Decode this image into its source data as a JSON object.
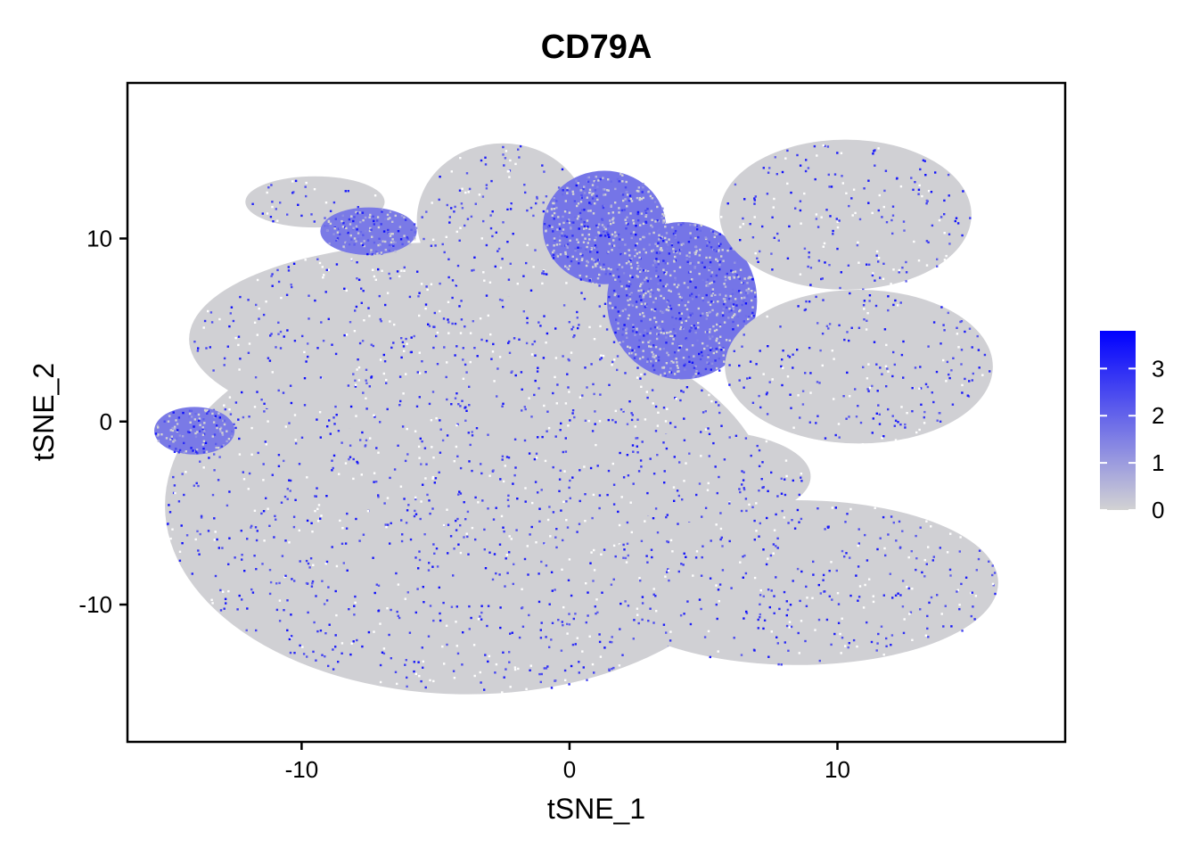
{
  "chart_data": {
    "type": "scatter",
    "title": "CD79A",
    "xlabel": "tSNE_1",
    "ylabel": "tSNE_2",
    "xlim": [
      -16.5,
      18.5
    ],
    "ylim": [
      -17.5,
      18.5
    ],
    "x_ticks": [
      -10,
      0,
      10
    ],
    "y_ticks": [
      -10,
      0,
      10
    ],
    "x_tick_labels": [
      "-10",
      "0",
      "10"
    ],
    "y_tick_labels": [
      "-10",
      "0",
      "10"
    ],
    "grid": false,
    "color_scale": {
      "low_color": "#d3d3d3",
      "high_color": "#0000ff",
      "range": [
        0,
        3.8
      ],
      "ticks": [
        0,
        1,
        2,
        3
      ],
      "tick_labels": [
        "0",
        "1",
        "2",
        "3"
      ],
      "legend_position": "right"
    },
    "clusters": [
      {
        "cx": -3.8,
        "cy": -4.6,
        "rx": 11.3,
        "ry": 10.3,
        "expr": 0.05
      },
      {
        "cx": -4.5,
        "cy": 4.5,
        "rx": 9.7,
        "ry": 5.3,
        "expr": 0.05
      },
      {
        "cx": -2.5,
        "cy": 11.0,
        "rx": 3.2,
        "ry": 4.2,
        "expr": 0.05
      },
      {
        "cx": -9.5,
        "cy": 12.0,
        "rx": 2.6,
        "ry": 1.4,
        "expr": 0.05
      },
      {
        "cx": -7.5,
        "cy": 10.4,
        "rx": 1.8,
        "ry": 1.3,
        "expr": 1.6
      },
      {
        "cx": -14.0,
        "cy": -0.5,
        "rx": 1.5,
        "ry": 1.3,
        "expr": 1.6
      },
      {
        "cx": 1.3,
        "cy": 10.6,
        "rx": 2.3,
        "ry": 3.1,
        "expr": 1.7
      },
      {
        "cx": 4.2,
        "cy": 6.6,
        "rx": 2.8,
        "ry": 4.3,
        "expr": 1.7
      },
      {
        "cx": 10.3,
        "cy": 11.3,
        "rx": 4.7,
        "ry": 4.1,
        "expr": 0.05
      },
      {
        "cx": 10.8,
        "cy": 3.0,
        "rx": 5.0,
        "ry": 4.2,
        "expr": 0.05
      },
      {
        "cx": 8.5,
        "cy": -8.8,
        "rx": 7.5,
        "ry": 4.5,
        "expr": 0.05
      },
      {
        "cx": 5.0,
        "cy": -3.0,
        "rx": 4.0,
        "ry": 2.5,
        "expr": 0.05
      }
    ]
  }
}
